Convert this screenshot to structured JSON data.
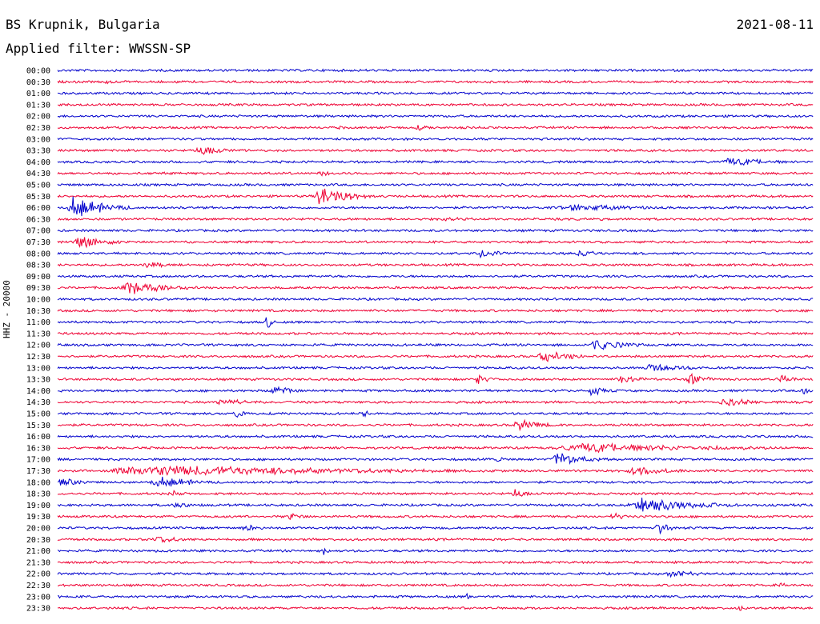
{
  "header": {
    "station": "BS Krupnik, Bulgaria",
    "date": "2021-08-11",
    "filter": "Applied filter: WWSSN-SP"
  },
  "chart_data": {
    "type": "line",
    "title": "BS Krupnik, Bulgaria",
    "ylabel": "HHZ - 20000",
    "row_times": [
      "00:00",
      "00:30",
      "01:00",
      "01:30",
      "02:00",
      "02:30",
      "03:00",
      "03:30",
      "04:00",
      "04:30",
      "05:00",
      "05:30",
      "06:00",
      "06:30",
      "07:00",
      "07:30",
      "08:00",
      "08:30",
      "09:00",
      "09:30",
      "10:00",
      "10:30",
      "11:00",
      "11:30",
      "12:00",
      "12:30",
      "13:00",
      "13:30",
      "14:00",
      "14:30",
      "15:00",
      "15:30",
      "16:00",
      "16:30",
      "17:00",
      "17:30",
      "18:00",
      "18:30",
      "19:00",
      "19:30",
      "20:00",
      "20:30",
      "21:00",
      "21:30",
      "22:00",
      "22:30",
      "23:00",
      "23:30"
    ],
    "colors": [
      "#0000cc",
      "#ee0033"
    ],
    "x_range_minutes": [
      0,
      30
    ],
    "events": [
      {
        "row": 1,
        "x": 0.05,
        "dur": 0.06,
        "amp": 3
      },
      {
        "row": 5,
        "x": 0.37,
        "dur": 0.02,
        "amp": 4
      },
      {
        "row": 5,
        "x": 0.47,
        "dur": 0.05,
        "amp": 4
      },
      {
        "row": 7,
        "x": 0.18,
        "dur": 0.06,
        "amp": 7
      },
      {
        "row": 8,
        "x": 0.87,
        "dur": 0.12,
        "amp": 6
      },
      {
        "row": 9,
        "x": 0.34,
        "dur": 0.04,
        "amp": 5
      },
      {
        "row": 11,
        "x": 0.34,
        "dur": 0.06,
        "amp": 17
      },
      {
        "row": 12,
        "x": 0.01,
        "dur": 0.07,
        "amp": 16
      },
      {
        "row": 12,
        "x": 0.65,
        "dur": 0.2,
        "amp": 5
      },
      {
        "row": 13,
        "x": 0.5,
        "dur": 0.1,
        "amp": 3
      },
      {
        "row": 15,
        "x": 0.02,
        "dur": 0.07,
        "amp": 9
      },
      {
        "row": 16,
        "x": 0.55,
        "dur": 0.07,
        "amp": 6
      },
      {
        "row": 16,
        "x": 0.68,
        "dur": 0.06,
        "amp": 5
      },
      {
        "row": 17,
        "x": 0.11,
        "dur": 0.06,
        "amp": 5
      },
      {
        "row": 19,
        "x": 0.08,
        "dur": 0.1,
        "amp": 9
      },
      {
        "row": 22,
        "x": 0.275,
        "dur": 0.01,
        "amp": 16
      },
      {
        "row": 24,
        "x": 0.7,
        "dur": 0.08,
        "amp": 8
      },
      {
        "row": 25,
        "x": 0.63,
        "dur": 0.08,
        "amp": 8
      },
      {
        "row": 26,
        "x": 0.77,
        "dur": 0.1,
        "amp": 6
      },
      {
        "row": 27,
        "x": 0.55,
        "dur": 0.03,
        "amp": 7
      },
      {
        "row": 27,
        "x": 0.74,
        "dur": 0.04,
        "amp": 8
      },
      {
        "row": 27,
        "x": 0.83,
        "dur": 0.04,
        "amp": 9
      },
      {
        "row": 27,
        "x": 0.95,
        "dur": 0.04,
        "amp": 7
      },
      {
        "row": 28,
        "x": 0.28,
        "dur": 0.04,
        "amp": 9
      },
      {
        "row": 28,
        "x": 0.7,
        "dur": 0.04,
        "amp": 7
      },
      {
        "row": 28,
        "x": 0.98,
        "dur": 0.02,
        "amp": 9
      },
      {
        "row": 29,
        "x": 0.2,
        "dur": 0.1,
        "amp": 5
      },
      {
        "row": 29,
        "x": 0.87,
        "dur": 0.08,
        "amp": 6
      },
      {
        "row": 30,
        "x": 0.23,
        "dur": 0.03,
        "amp": 6
      },
      {
        "row": 30,
        "x": 0.4,
        "dur": 0.02,
        "amp": 6
      },
      {
        "row": 31,
        "x": 0.6,
        "dur": 0.06,
        "amp": 8
      },
      {
        "row": 33,
        "x": 0.64,
        "dur": 0.35,
        "amp": 7
      },
      {
        "row": 34,
        "x": 0.65,
        "dur": 0.07,
        "amp": 10
      },
      {
        "row": 34,
        "x": 0.58,
        "dur": 0.01,
        "amp": 8
      },
      {
        "row": 35,
        "x": 0.04,
        "dur": 0.55,
        "amp": 8
      },
      {
        "row": 35,
        "x": 0.75,
        "dur": 0.08,
        "amp": 7
      },
      {
        "row": 36,
        "x": 0.0,
        "dur": 0.04,
        "amp": 7
      },
      {
        "row": 36,
        "x": 0.12,
        "dur": 0.08,
        "amp": 9
      },
      {
        "row": 37,
        "x": 0.15,
        "dur": 0.02,
        "amp": 6
      },
      {
        "row": 37,
        "x": 0.6,
        "dur": 0.03,
        "amp": 7
      },
      {
        "row": 38,
        "x": 0.15,
        "dur": 0.03,
        "amp": 7
      },
      {
        "row": 38,
        "x": 0.75,
        "dur": 0.15,
        "amp": 10
      },
      {
        "row": 39,
        "x": 0.3,
        "dur": 0.04,
        "amp": 6
      },
      {
        "row": 39,
        "x": 0.73,
        "dur": 0.03,
        "amp": 6
      },
      {
        "row": 40,
        "x": 0.24,
        "dur": 0.05,
        "amp": 5
      },
      {
        "row": 40,
        "x": 0.79,
        "dur": 0.03,
        "amp": 10
      },
      {
        "row": 41,
        "x": 0.12,
        "dur": 0.08,
        "amp": 5
      },
      {
        "row": 42,
        "x": 0.35,
        "dur": 0.01,
        "amp": 10
      },
      {
        "row": 44,
        "x": 0.8,
        "dur": 0.08,
        "amp": 5
      },
      {
        "row": 45,
        "x": 0.95,
        "dur": 0.03,
        "amp": 4
      },
      {
        "row": 46,
        "x": 0.54,
        "dur": 0.01,
        "amp": 5
      },
      {
        "row": 47,
        "x": 0.9,
        "dur": 0.01,
        "amp": 6
      }
    ]
  }
}
